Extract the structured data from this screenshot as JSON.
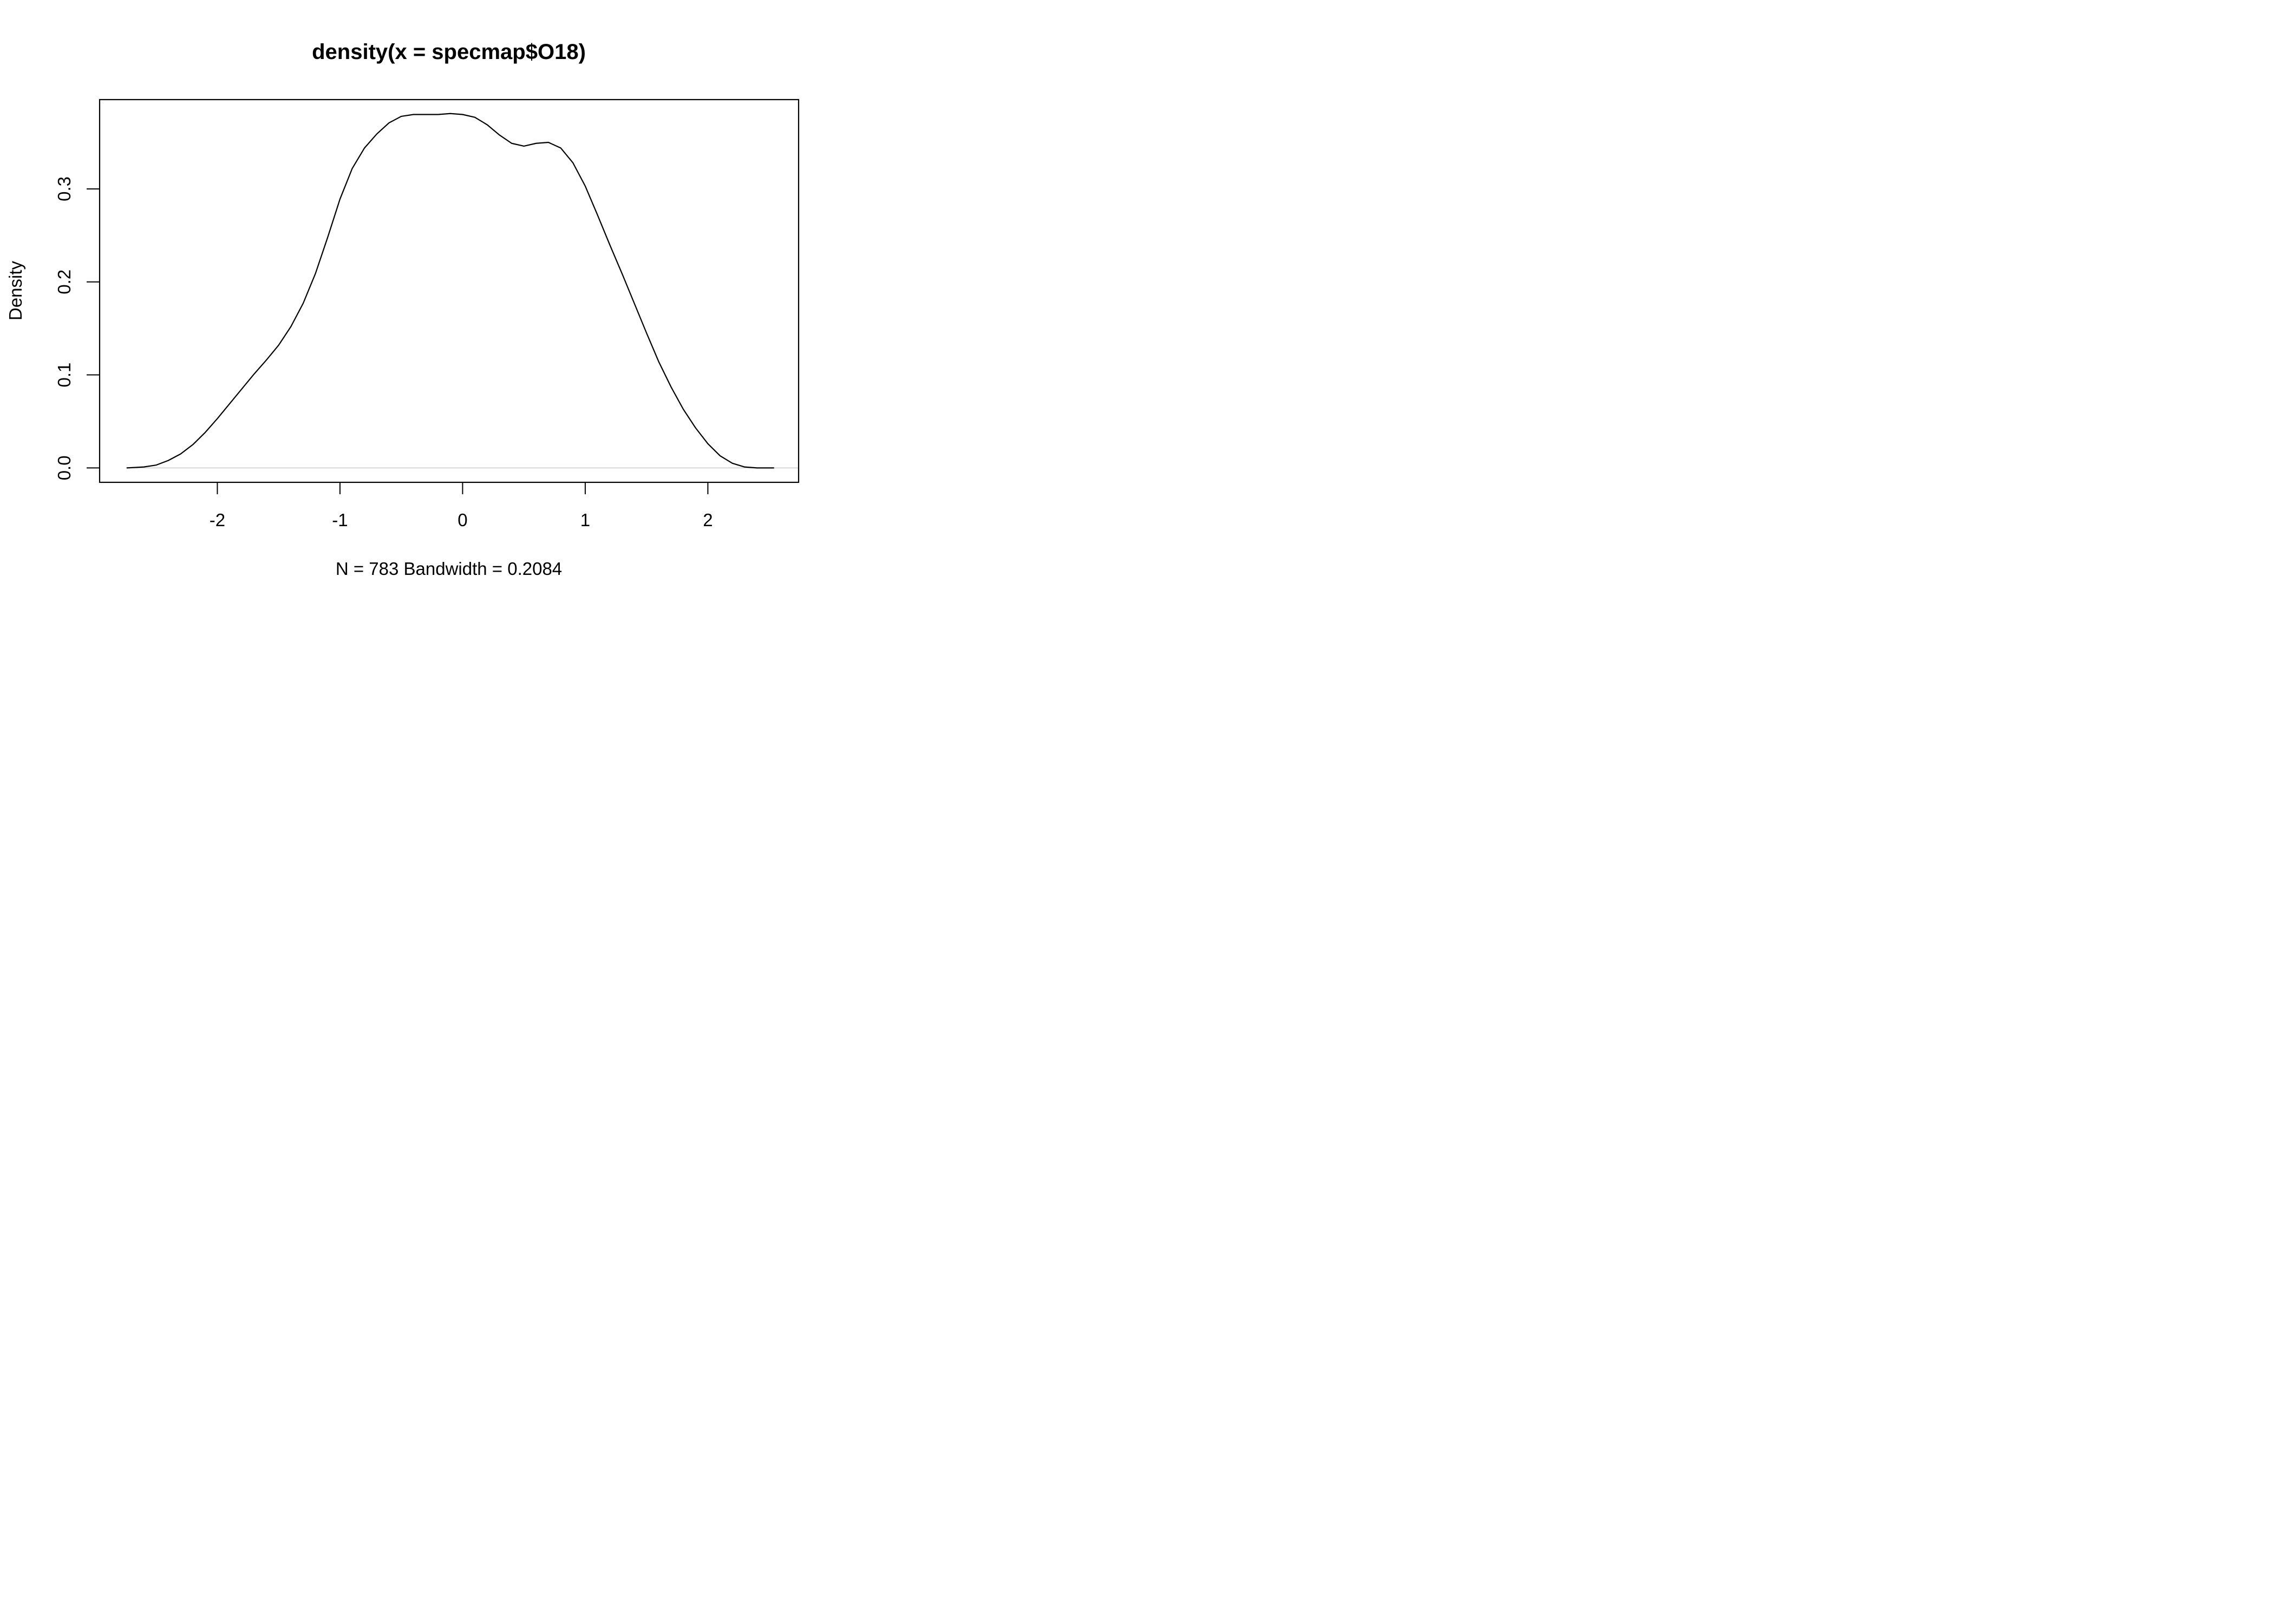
{
  "chart_data": {
    "type": "line",
    "title": "density(x = specmap$O18)",
    "xlabel": "N = 783   Bandwidth = 0.2084",
    "ylabel": "Density",
    "xlim": [
      -2.96,
      2.74
    ],
    "ylim": [
      -0.0155,
      0.396
    ],
    "x_ticks": [
      -2,
      -1,
      0,
      1,
      2
    ],
    "x_tick_labels": [
      "-2",
      "-1",
      "0",
      "1",
      "2"
    ],
    "y_ticks": [
      0.0,
      0.1,
      0.2,
      0.3
    ],
    "y_tick_labels": [
      "0.0",
      "0.1",
      "0.2",
      "0.3"
    ],
    "grid": false,
    "baseline": 0,
    "colors": {
      "line": "#000000",
      "baseline": "#cccccc",
      "frame": "#000000"
    },
    "series": [
      {
        "x": [
          -2.74,
          -2.6,
          -2.5,
          -2.4,
          -2.3,
          -2.2,
          -2.1,
          -2.0,
          -1.9,
          -1.8,
          -1.7,
          -1.6,
          -1.5,
          -1.4,
          -1.3,
          -1.2,
          -1.1,
          -1.0,
          -0.9,
          -0.8,
          -0.7,
          -0.6,
          -0.5,
          -0.4,
          -0.3,
          -0.2,
          -0.1,
          0.0,
          0.1,
          0.2,
          0.3,
          0.4,
          0.5,
          0.6,
          0.7,
          0.8,
          0.9,
          1.0,
          1.1,
          1.2,
          1.3,
          1.4,
          1.5,
          1.6,
          1.7,
          1.8,
          1.9,
          2.0,
          2.1,
          2.2,
          2.3,
          2.4,
          2.54
        ],
        "y": [
          0.0,
          0.001,
          0.003,
          0.008,
          0.015,
          0.025,
          0.038,
          0.053,
          0.069,
          0.085,
          0.101,
          0.116,
          0.132,
          0.152,
          0.177,
          0.209,
          0.248,
          0.289,
          0.322,
          0.344,
          0.359,
          0.371,
          0.378,
          0.38,
          0.38,
          0.38,
          0.381,
          0.38,
          0.377,
          0.369,
          0.358,
          0.349,
          0.346,
          0.349,
          0.35,
          0.344,
          0.328,
          0.303,
          0.272,
          0.24,
          0.209,
          0.177,
          0.145,
          0.114,
          0.087,
          0.063,
          0.043,
          0.026,
          0.013,
          0.005,
          0.001,
          0.0,
          0.0
        ]
      }
    ]
  }
}
